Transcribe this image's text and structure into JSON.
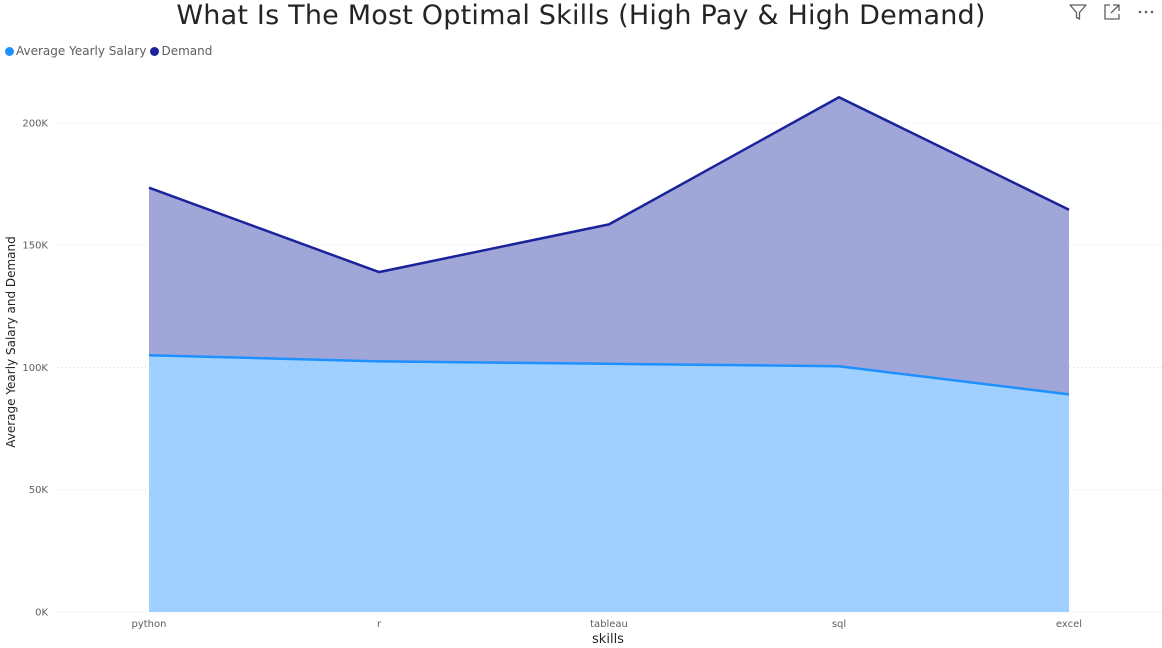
{
  "title": "What Is The Most Optimal Skills (High Pay & High Demand)",
  "toolbar": {
    "filter": "filter-icon",
    "focus": "focus-mode-icon",
    "more": "more-options-icon"
  },
  "colors": {
    "salary_line": "#1E90FF",
    "salary_fill": "#A0D0FF",
    "demand_line": "#1A239B",
    "demand_fill": "#A1A6D8",
    "grid": "#D9D9D9"
  },
  "chart_data": {
    "type": "area",
    "title": "What Is The Most Optimal Skills (High Pay & High Demand)",
    "xlabel": "skills",
    "ylabel": "Average Yearly Salary and Demand",
    "categories": [
      "python",
      "r",
      "tableau",
      "sql",
      "excel"
    ],
    "series": [
      {
        "name": "Average Yearly Salary",
        "values": [
          105000,
          102500,
          101500,
          100500,
          89000
        ]
      },
      {
        "name": "Demand",
        "values": [
          173500,
          139000,
          158500,
          210500,
          164500
        ]
      }
    ],
    "ylim": [
      0,
      220000
    ],
    "yticks": [
      0,
      50000,
      100000,
      150000,
      200000
    ],
    "ytick_labels": [
      "0K",
      "50K",
      "100K",
      "150K",
      "200K"
    ],
    "grid": true,
    "legend": "top-left"
  }
}
